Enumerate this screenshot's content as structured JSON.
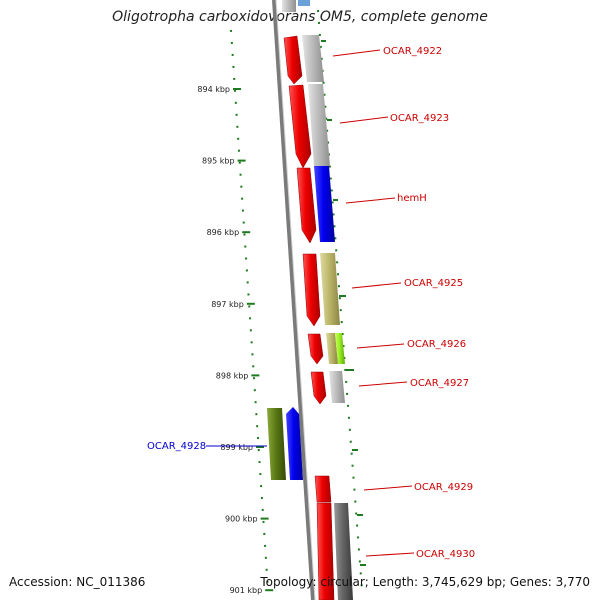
{
  "title": "Oligotropha carboxidovorans OM5, complete genome",
  "accession": "Accession: NC_011386",
  "topology": "Topology: circular; Length: 3,745,629 bp; Genes: 3,770",
  "ruler": {
    "tick_labels": [
      "894 kbp",
      "895 kbp",
      "896 kbp",
      "897 kbp",
      "898 kbp",
      "899 kbp",
      "900 kbp",
      "901 kbp"
    ]
  },
  "colors": {
    "backbone": "#7a7a7a",
    "ruler": "#1f7a1f",
    "red_cds": "#ee0000",
    "label_forward": "#cc0000",
    "label_reverse": "#0000cc",
    "blue": "#0000ee",
    "olive": "#5a7a14",
    "khaki": "#bdb76b",
    "lime": "#99ee22",
    "gray": "#bbbbbb",
    "dark_gray": "#666666"
  },
  "genes": [
    {
      "label": "OCAR_4922",
      "strand": "forward",
      "color": "#cc0000"
    },
    {
      "label": "OCAR_4923",
      "strand": "forward",
      "color": "#cc0000"
    },
    {
      "label": "hemH",
      "strand": "forward",
      "color": "#cc0000"
    },
    {
      "label": "OCAR_4925",
      "strand": "forward",
      "color": "#cc0000"
    },
    {
      "label": "OCAR_4926",
      "strand": "forward",
      "color": "#cc0000"
    },
    {
      "label": "OCAR_4927",
      "strand": "forward",
      "color": "#cc0000"
    },
    {
      "label": "OCAR_4928",
      "strand": "reverse",
      "color": "#0000cc"
    },
    {
      "label": "OCAR_4929",
      "strand": "forward",
      "color": "#cc0000"
    },
    {
      "label": "OCAR_4930",
      "strand": "forward",
      "color": "#cc0000"
    }
  ]
}
